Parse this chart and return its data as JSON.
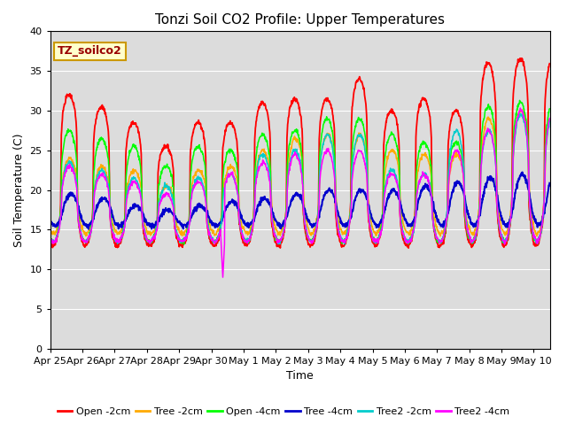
{
  "title": "Tonzi Soil CO2 Profile: Upper Temperatures",
  "xlabel": "Time",
  "ylabel": "Soil Temperature (C)",
  "ylim": [
    0,
    40
  ],
  "yticks": [
    0,
    5,
    10,
    15,
    20,
    25,
    30,
    35,
    40
  ],
  "bg_color": "#dcdcdc",
  "annotation_label": "TZ_soilco2",
  "annotation_bg": "#ffffcc",
  "annotation_border": "#cc9900",
  "legend_labels": [
    "Open -2cm",
    "Tree -2cm",
    "Open -4cm",
    "Tree -4cm",
    "Tree2 -2cm",
    "Tree2 -4cm"
  ],
  "line_colors": [
    "#ff0000",
    "#ffaa00",
    "#00ff00",
    "#0000cc",
    "#00cccc",
    "#ff00ff"
  ],
  "day_labels": [
    "Apr 25",
    "Apr 26",
    "Apr 27",
    "Apr 28",
    "Apr 29",
    "Apr 30",
    "May 1",
    "May 2",
    "May 3",
    "May 4",
    "May 5",
    "May 6",
    "May 7",
    "May 8",
    "May 9",
    "May 10"
  ],
  "grid_color": "#ffffff",
  "title_fontsize": 11,
  "axis_fontsize": 9,
  "tick_fontsize": 8,
  "legend_fontsize": 8,
  "daily_peaks_open2": [
    32.0,
    30.5,
    28.5,
    25.5,
    28.5,
    28.5,
    31.0,
    31.5,
    31.5,
    34.0,
    30.0,
    31.5,
    30.0,
    36.0,
    36.5
  ],
  "daily_peaks_tree2": [
    24.0,
    23.0,
    22.5,
    20.5,
    22.5,
    23.0,
    25.0,
    26.5,
    27.0,
    27.0,
    25.0,
    24.5,
    24.5,
    29.0,
    30.0
  ],
  "daily_peaks_open4": [
    27.5,
    26.5,
    25.5,
    23.0,
    25.5,
    25.0,
    27.0,
    27.5,
    29.0,
    29.0,
    27.0,
    26.0,
    26.0,
    30.5,
    31.0
  ],
  "daily_peaks_tree4": [
    19.5,
    19.0,
    18.0,
    17.5,
    18.0,
    18.5,
    19.0,
    19.5,
    20.0,
    20.0,
    20.0,
    20.5,
    21.0,
    21.5,
    22.0
  ],
  "daily_peaks_tree2cm": [
    23.5,
    22.5,
    21.5,
    20.5,
    21.5,
    22.0,
    24.5,
    25.0,
    27.0,
    27.0,
    22.5,
    22.0,
    27.5,
    27.5,
    29.5
  ],
  "daily_peaks_tree24cm": [
    23.0,
    22.0,
    21.0,
    19.5,
    21.0,
    22.0,
    23.5,
    24.5,
    25.0,
    25.0,
    22.0,
    22.0,
    25.0,
    27.5,
    30.0
  ],
  "daily_min": 14.0,
  "peak_hour": 14.0,
  "sharpness": 3.5
}
